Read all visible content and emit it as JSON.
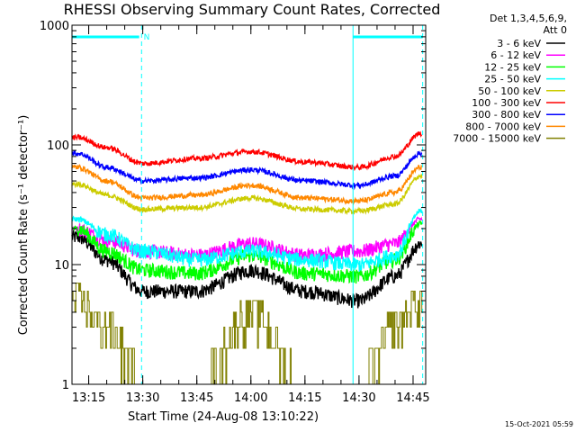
{
  "chart_data": {
    "type": "line",
    "title": "RHESSI Observing Summary Count Rates, Corrected",
    "xlabel": "Start Time (24-Aug-08 13:10:22)",
    "ylabel": "Corrected Count Rate (s⁻¹ detector⁻¹)",
    "y_scale": "log",
    "ylim": [
      1,
      1000
    ],
    "y_ticks": [
      {
        "value": 1,
        "label": "1"
      },
      {
        "value": 10,
        "label": "10"
      },
      {
        "value": 100,
        "label": "100"
      },
      {
        "value": 1000,
        "label": "1000"
      }
    ],
    "xlim": [
      "13:10:22",
      "14:48:30"
    ],
    "x_ticks": [
      "13:15",
      "13:30",
      "13:45",
      "14:00",
      "14:15",
      "14:30",
      "14:45"
    ],
    "legend": {
      "position": "top-right",
      "header": [
        "Det 1,3,4,5,6,9,",
        "Att 0"
      ]
    },
    "annotations": {
      "night_flag_label": "N",
      "timestamp": "15-Oct-2021 05:59",
      "vertical_lines": [
        {
          "time": "13:10:22",
          "style": "solid"
        },
        {
          "time": "13:29:40",
          "style": "dashed"
        },
        {
          "time": "14:28:20",
          "style": "solid"
        },
        {
          "time": "14:47:40",
          "style": "dashed"
        }
      ],
      "flag_bars": [
        {
          "from": "13:10:22",
          "to": "13:29:00",
          "label": "N"
        },
        {
          "from": "14:28:20",
          "to": "14:47:40",
          "label": ""
        }
      ]
    },
    "x_samples": [
      "13:12",
      "13:20",
      "13:30",
      "13:45",
      "14:00",
      "14:15",
      "14:30",
      "14:40",
      "14:47"
    ],
    "series": [
      {
        "name": "3 - 6 keV",
        "color": "#000000",
        "values": [
          17,
          11,
          6,
          6,
          9,
          6,
          5,
          8,
          15
        ]
      },
      {
        "name": "6 - 12 keV",
        "color": "#ff00ff",
        "values": [
          20,
          16,
          13,
          12,
          15,
          12,
          13,
          15,
          24
        ]
      },
      {
        "name": "12 - 25 keV",
        "color": "#00ff00",
        "values": [
          20,
          13,
          9,
          8.5,
          12,
          8.5,
          8,
          11,
          22
        ]
      },
      {
        "name": "25 - 50 keV",
        "color": "#00ffff",
        "values": [
          24,
          18,
          13,
          11,
          13,
          11,
          10,
          12,
          28
        ]
      },
      {
        "name": "50 - 100 keV",
        "color": "#cccc00",
        "values": [
          47,
          38,
          29,
          30,
          36,
          29,
          28,
          32,
          55
        ]
      },
      {
        "name": "100 - 300 keV",
        "color": "#ff0000",
        "values": [
          115,
          95,
          70,
          77,
          88,
          72,
          65,
          80,
          125
        ]
      },
      {
        "name": "300 - 800 keV",
        "color": "#0000ff",
        "values": [
          85,
          65,
          50,
          53,
          62,
          50,
          46,
          55,
          85
        ]
      },
      {
        "name": "800 - 7000 keV",
        "color": "#ff8800",
        "values": [
          65,
          50,
          36,
          38,
          46,
          36,
          34,
          40,
          65
        ]
      },
      {
        "name": "7000 - 15000 keV",
        "color": "#808000",
        "values": [
          5,
          3,
          1,
          1,
          4,
          1,
          1,
          3,
          5
        ]
      }
    ]
  }
}
